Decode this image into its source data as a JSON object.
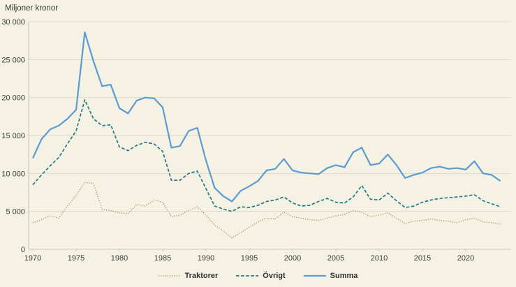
{
  "title": "Miljoner kronor",
  "colors": {
    "background": "#f5f2e3",
    "gridline": "#dbd8ca",
    "axis": "#c9c6b7",
    "text": "#3a3a3a",
    "traktorer": "#9b9a6d",
    "ovrigt": "#1f7a8c",
    "summa": "#5b9bd5"
  },
  "legend": [
    {
      "id": "traktorer",
      "label": "Traktorer",
      "style": "dotted",
      "color": "#9b9a6d"
    },
    {
      "id": "ovrigt",
      "label": "Övrigt",
      "style": "dashed",
      "color": "#1f7a8c"
    },
    {
      "id": "summa",
      "label": "Summa",
      "style": "solid",
      "color": "#5b9bd5"
    }
  ],
  "chart_data": {
    "type": "line",
    "title": "Miljoner kronor",
    "xlabel": "",
    "ylabel": "Miljoner kronor",
    "ylim": [
      0,
      30000
    ],
    "grid": true,
    "legend_position": "bottom-center",
    "y_ticks": [
      {
        "value": 0,
        "label": "0"
      },
      {
        "value": 5000,
        "label": "5 000"
      },
      {
        "value": 10000,
        "label": "10 000"
      },
      {
        "value": 15000,
        "label": "15 000"
      },
      {
        "value": 20000,
        "label": "20 000"
      },
      {
        "value": 25000,
        "label": "25 000"
      },
      {
        "value": 30000,
        "label": "30 000"
      }
    ],
    "x_ticks": [
      1970,
      1975,
      1980,
      1985,
      1990,
      1995,
      2000,
      2005,
      2010,
      2015,
      2020
    ],
    "years": [
      1970,
      1971,
      1972,
      1973,
      1974,
      1975,
      1976,
      1977,
      1978,
      1979,
      1980,
      1981,
      1982,
      1983,
      1984,
      1985,
      1986,
      1987,
      1988,
      1989,
      1990,
      1991,
      1992,
      1993,
      1994,
      1995,
      1996,
      1997,
      1998,
      1999,
      2000,
      2001,
      2002,
      2003,
      2004,
      2005,
      2006,
      2007,
      2008,
      2009,
      2010,
      2011,
      2012,
      2013,
      2014,
      2015,
      2016,
      2017,
      2018,
      2019,
      2020,
      2021,
      2022,
      2023,
      2024
    ],
    "series": [
      {
        "name": "Traktorer",
        "style": "dotted",
        "color": "#9b9a6d",
        "values": [
          3500,
          3900,
          4400,
          4100,
          5700,
          7100,
          8800,
          8700,
          5300,
          5100,
          4800,
          4700,
          5900,
          5700,
          6500,
          6200,
          4300,
          4500,
          5100,
          5600,
          4500,
          3200,
          2400,
          1500,
          2200,
          2900,
          3600,
          4100,
          4000,
          4900,
          4300,
          4100,
          3900,
          3800,
          4100,
          4400,
          4600,
          5100,
          4900,
          4300,
          4500,
          4800,
          4100,
          3400,
          3700,
          3800,
          4000,
          3800,
          3700,
          3500,
          3900,
          4100,
          3600,
          3500,
          3300
        ]
      },
      {
        "name": "Övrigt",
        "style": "dashed",
        "color": "#1f7a8c",
        "values": [
          8500,
          9800,
          11000,
          12100,
          13900,
          15600,
          19700,
          17200,
          16300,
          16400,
          13500,
          13000,
          13700,
          14100,
          13900,
          12900,
          9100,
          9100,
          10000,
          10300,
          8000,
          5700,
          5300,
          5000,
          5600,
          5500,
          5800,
          6300,
          6500,
          6900,
          6100,
          5700,
          5800,
          6300,
          6700,
          6200,
          6100,
          6900,
          8400,
          6600,
          6500,
          7400,
          6400,
          5500,
          5700,
          6200,
          6500,
          6700,
          6800,
          6900,
          7000,
          7200,
          6400,
          6000,
          5600
        ]
      },
      {
        "name": "Summa",
        "style": "solid",
        "color": "#5b9bd5",
        "values": [
          12000,
          14500,
          15800,
          16300,
          17200,
          18400,
          28600,
          24800,
          21500,
          21700,
          18600,
          17900,
          19600,
          20000,
          19900,
          18700,
          13400,
          13600,
          15600,
          16000,
          11700,
          8100,
          7000,
          6300,
          7700,
          8300,
          9000,
          10400,
          10600,
          11900,
          10400,
          10100,
          10000,
          9900,
          10700,
          11100,
          10800,
          12800,
          13400,
          11100,
          11300,
          12500,
          11100,
          9400,
          9800,
          10100,
          10700,
          10900,
          10600,
          10700,
          10500,
          11600,
          10000,
          9800,
          9000
        ]
      }
    ]
  }
}
